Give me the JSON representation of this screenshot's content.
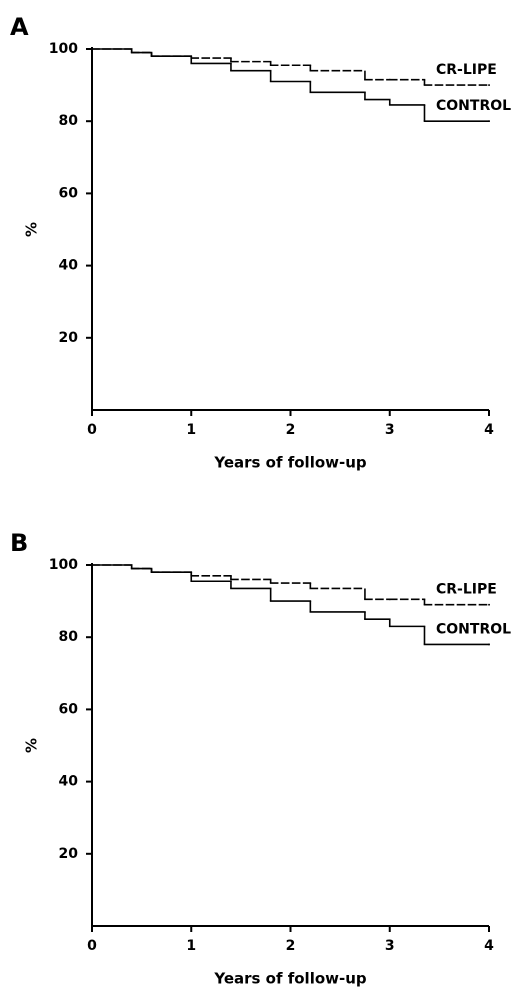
{
  "chart_data": [
    {
      "type": "step",
      "title": "A",
      "xlabel": "Years of follow-up",
      "ylabel": "%",
      "x": [
        0,
        0.4,
        0.6,
        1.0,
        1.4,
        1.8,
        2.2,
        2.75,
        3.0,
        3.35,
        4
      ],
      "series": [
        {
          "name": "CR-LIPE",
          "color": "#000000",
          "style": "dashed",
          "values": [
            100,
            99,
            98,
            97.5,
            96.5,
            95.5,
            94,
            91.5,
            91.5,
            90,
            90
          ]
        },
        {
          "name": "CONTROL",
          "color": "#000000",
          "style": "solid",
          "values": [
            100,
            99,
            98,
            96,
            94,
            91,
            88,
            86,
            84.5,
            80,
            80
          ]
        }
      ],
      "xlim": [
        0,
        4
      ],
      "ylim": [
        0,
        100
      ],
      "xticks": [
        0,
        1,
        2,
        3,
        4
      ],
      "yticks": [
        20,
        40,
        60,
        80,
        100
      ]
    },
    {
      "type": "step",
      "title": "B",
      "xlabel": "Years of follow-up",
      "ylabel": "%",
      "x": [
        0,
        0.4,
        0.6,
        1.0,
        1.4,
        1.8,
        2.2,
        2.75,
        3.0,
        3.35,
        4
      ],
      "series": [
        {
          "name": "CR-LIPE",
          "color": "#000000",
          "style": "dashed",
          "values": [
            100,
            99,
            98,
            97,
            96,
            95,
            93.5,
            90.5,
            90.5,
            89,
            89
          ]
        },
        {
          "name": "CONTROL",
          "color": "#000000",
          "style": "solid",
          "values": [
            100,
            99,
            98,
            95.5,
            93.5,
            90,
            87,
            85,
            83,
            78,
            78
          ]
        }
      ],
      "xlim": [
        0,
        4
      ],
      "ylim": [
        0,
        100
      ],
      "xticks": [
        0,
        1,
        2,
        3,
        4
      ],
      "yticks": [
        20,
        40,
        60,
        80,
        100
      ]
    }
  ]
}
